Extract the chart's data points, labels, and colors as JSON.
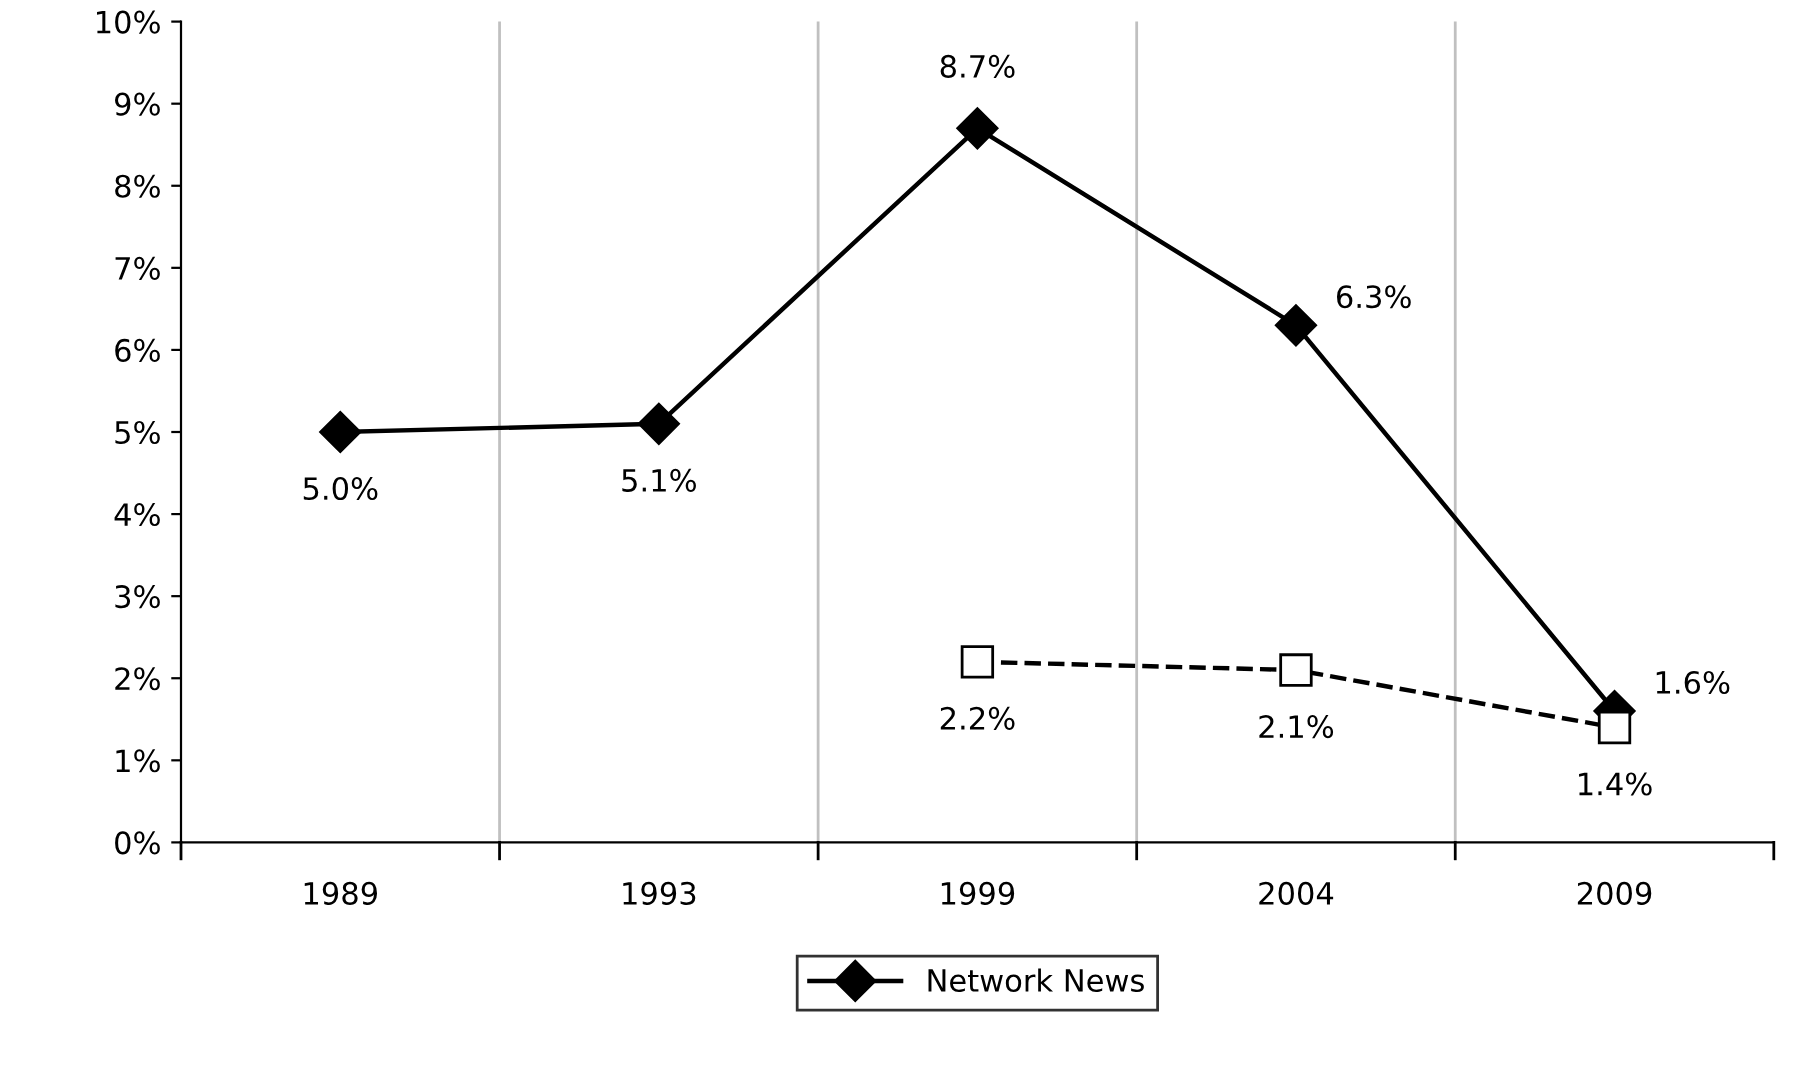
{
  "chart_data": {
    "type": "line",
    "categories": [
      "1989",
      "1993",
      "1999",
      "2004",
      "2009"
    ],
    "series": [
      {
        "name": "Network News",
        "color": "#000000",
        "marker": "diamond",
        "line_style": "solid",
        "values": [
          5.0,
          5.1,
          8.7,
          6.3,
          1.6
        ],
        "value_labels": [
          "5.0%",
          "5.1%",
          "8.7%",
          "6.3%",
          "1.6%"
        ]
      },
      {
        "color": "#000000",
        "marker": "square",
        "line_style": "dashed",
        "values": [
          null,
          null,
          2.2,
          2.1,
          1.4
        ],
        "value_labels": [
          null,
          null,
          "2.2%",
          "2.1%",
          "1.4%"
        ]
      }
    ],
    "ylim": [
      0,
      10
    ],
    "yticks": [
      {
        "value": 0,
        "label": "0%"
      },
      {
        "value": 1,
        "label": "1%"
      },
      {
        "value": 2,
        "label": "2%"
      },
      {
        "value": 3,
        "label": "3%"
      },
      {
        "value": 4,
        "label": "4%"
      },
      {
        "value": 5,
        "label": "5%"
      },
      {
        "value": 6,
        "label": "6%"
      },
      {
        "value": 7,
        "label": "7%"
      },
      {
        "value": 8,
        "label": "8%"
      },
      {
        "value": 9,
        "label": "9%"
      },
      {
        "value": 10,
        "label": "10%"
      }
    ],
    "grid": "x",
    "legend": "bottom"
  }
}
